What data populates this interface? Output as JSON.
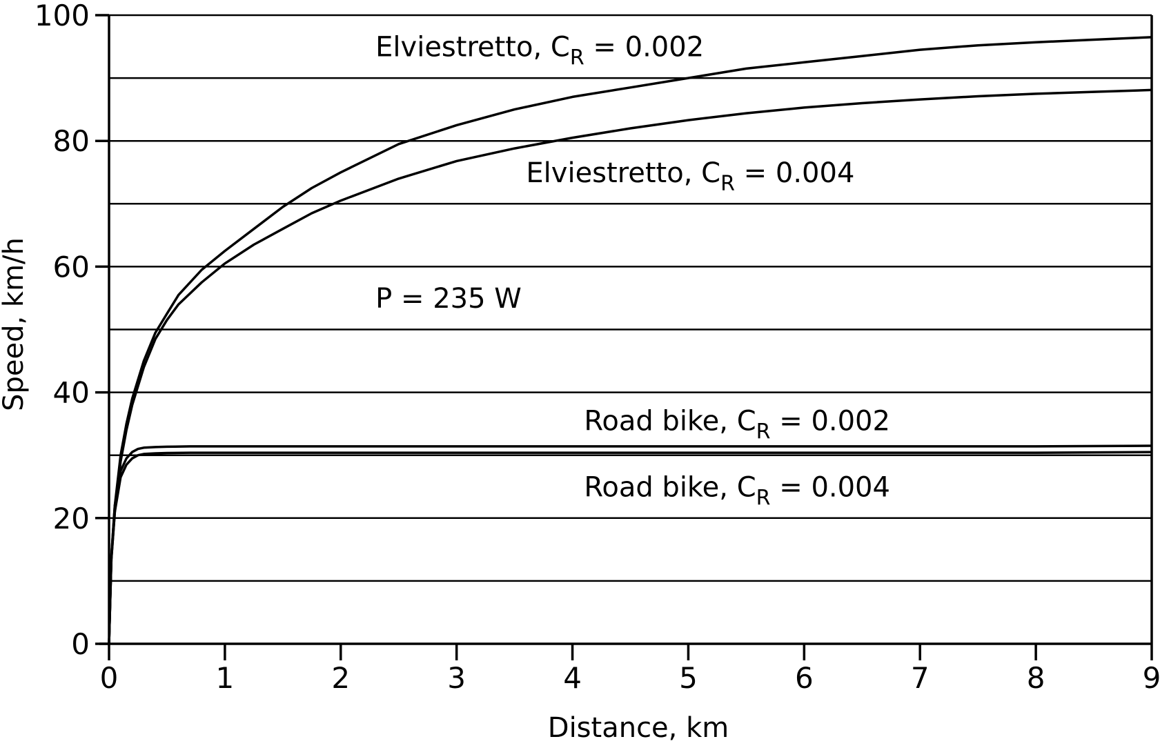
{
  "chart_data": {
    "type": "line",
    "xlabel": "Distance, km",
    "ylabel": "Speed, km/h",
    "xlim": [
      0,
      9
    ],
    "ylim": [
      0,
      100
    ],
    "xticks": [
      "0",
      "1",
      "2",
      "3",
      "4",
      "5",
      "6",
      "7",
      "8",
      "9"
    ],
    "yticks": [
      "0",
      "20",
      "40",
      "60",
      "80",
      "100"
    ],
    "grid": "horizontal lines every 10 km/h",
    "series": [
      {
        "name": "Elviestretto, C_R = 0.002",
        "x": [
          0,
          0.02,
          0.05,
          0.1,
          0.15,
          0.2,
          0.3,
          0.4,
          0.5,
          0.6,
          0.8,
          1.0,
          1.25,
          1.5,
          1.75,
          2.0,
          2.5,
          3.0,
          3.5,
          4.0,
          4.5,
          5.0,
          5.5,
          6.0,
          6.5,
          7.0,
          7.5,
          8.0,
          8.5,
          9.0
        ],
        "y": [
          0,
          14,
          22,
          30,
          35,
          39,
          45,
          49.5,
          52.5,
          55.5,
          59.5,
          62.5,
          66,
          69.5,
          72.5,
          75,
          79.5,
          82.5,
          85,
          87,
          88.5,
          90,
          91.5,
          92.5,
          93.5,
          94.5,
          95.2,
          95.7,
          96.1,
          96.5
        ]
      },
      {
        "name": "Elviestretto, C_R = 0.004",
        "x": [
          0,
          0.02,
          0.05,
          0.1,
          0.15,
          0.2,
          0.3,
          0.4,
          0.5,
          0.6,
          0.8,
          1.0,
          1.25,
          1.5,
          1.75,
          2.0,
          2.5,
          3.0,
          3.5,
          4.0,
          4.5,
          5.0,
          5.5,
          6.0,
          6.5,
          7.0,
          7.5,
          8.0,
          8.5,
          9.0
        ],
        "y": [
          0,
          13.5,
          21,
          29,
          34,
          38,
          44,
          48.5,
          51.5,
          54,
          57.5,
          60.5,
          63.5,
          66,
          68.5,
          70.5,
          74,
          76.8,
          78.8,
          80.5,
          82,
          83.3,
          84.4,
          85.3,
          86,
          86.6,
          87.1,
          87.5,
          87.8,
          88.1
        ]
      },
      {
        "name": "Road bike, C_R = 0.002",
        "x": [
          0,
          0.02,
          0.05,
          0.1,
          0.15,
          0.2,
          0.25,
          0.3,
          0.4,
          0.5,
          0.7,
          1.0,
          2.0,
          3.0,
          4.0,
          5.0,
          6.0,
          7.0,
          8.0,
          9.0
        ],
        "y": [
          0,
          14,
          22,
          27.5,
          29.5,
          30.5,
          31.0,
          31.2,
          31.3,
          31.35,
          31.4,
          31.4,
          31.4,
          31.4,
          31.4,
          31.4,
          31.4,
          31.4,
          31.4,
          31.5
        ]
      },
      {
        "name": "Road bike, C_R = 0.004",
        "x": [
          0,
          0.02,
          0.05,
          0.1,
          0.15,
          0.2,
          0.25,
          0.3,
          0.4,
          0.5,
          0.7,
          1.0,
          2.0,
          3.0,
          4.0,
          5.0,
          6.0,
          7.0,
          8.0,
          9.0
        ],
        "y": [
          0,
          13.5,
          21,
          26.5,
          28.5,
          29.5,
          30.0,
          30.2,
          30.3,
          30.35,
          30.4,
          30.4,
          30.4,
          30.4,
          30.4,
          30.4,
          30.4,
          30.4,
          30.4,
          30.5
        ]
      }
    ],
    "annotations": [
      {
        "main": "Elviestretto, C",
        "sub": "R",
        "tail": " = 0.002",
        "x": 2.3,
        "y": 95
      },
      {
        "main": "Elviestretto, C",
        "sub": "R",
        "tail": " = 0.004",
        "x": 3.6,
        "y": 75
      },
      {
        "main": "P = 235 W",
        "sub": "",
        "tail": "",
        "x": 2.3,
        "y": 55
      },
      {
        "main": "Road bike, C",
        "sub": "R",
        "tail": " = 0.002",
        "x": 4.1,
        "y": 35.5
      },
      {
        "main": "Road bike, C",
        "sub": "R",
        "tail": " = 0.004",
        "x": 4.1,
        "y": 25
      }
    ]
  }
}
